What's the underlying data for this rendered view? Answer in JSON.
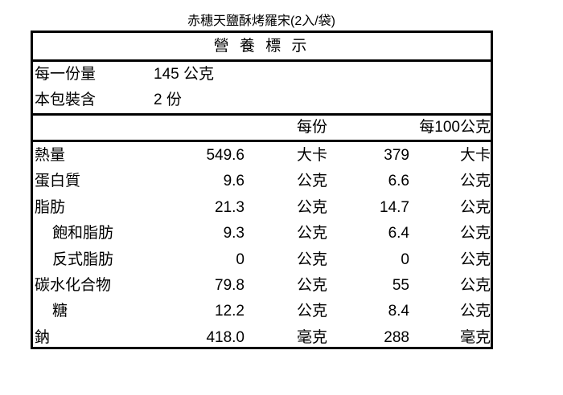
{
  "product_title": "赤穗天鹽酥烤羅宋(2入/袋)",
  "label": {
    "heading": "營 養 標 示",
    "serving_size_label": "每一份量",
    "serving_size_value": "145  公克",
    "servings_label": "本包裝含",
    "servings_value": "2 份",
    "col_per_serving": "每份",
    "col_per_100g": "每100公克",
    "rows": [
      {
        "name": "熱量",
        "indent": false,
        "per_serving": "549.6",
        "unit1": "大卡",
        "per_100": "379",
        "unit2": "大卡"
      },
      {
        "name": "蛋白質",
        "indent": false,
        "per_serving": "9.6",
        "unit1": "公克",
        "per_100": "6.6",
        "unit2": "公克"
      },
      {
        "name": "脂肪",
        "indent": false,
        "per_serving": "21.3",
        "unit1": "公克",
        "per_100": "14.7",
        "unit2": "公克"
      },
      {
        "name": "飽和脂肪",
        "indent": true,
        "per_serving": "9.3",
        "unit1": "公克",
        "per_100": "6.4",
        "unit2": "公克"
      },
      {
        "name": "反式脂肪",
        "indent": true,
        "per_serving": "0",
        "unit1": "公克",
        "per_100": "0",
        "unit2": "公克"
      },
      {
        "name": "碳水化合物",
        "indent": false,
        "per_serving": "79.8",
        "unit1": "公克",
        "per_100": "55",
        "unit2": "公克"
      },
      {
        "name": "糖",
        "indent": true,
        "per_serving": "12.2",
        "unit1": "公克",
        "per_100": "8.4",
        "unit2": "公克"
      },
      {
        "name": "鈉",
        "indent": false,
        "per_serving": "418.0",
        "unit1": "毫克",
        "per_100": "288",
        "unit2": "毫克"
      }
    ]
  }
}
